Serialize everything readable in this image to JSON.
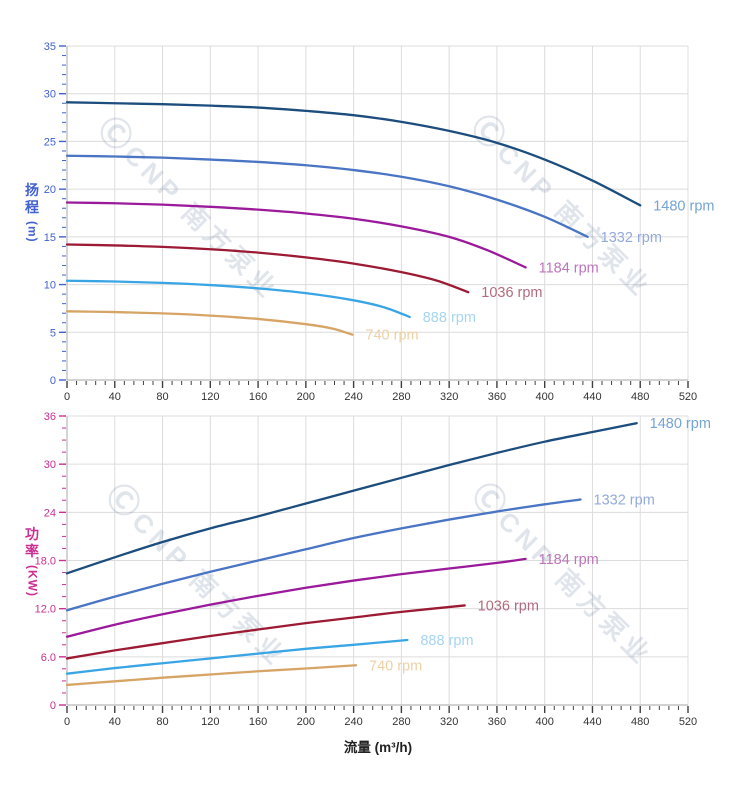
{
  "watermark": {
    "symbol": "Ⓒ",
    "text": "CNP 南方泵业"
  },
  "chart_data": [
    {
      "type": "line",
      "name": "pump-head-curves",
      "x_axis": {
        "title": "",
        "min": 0,
        "max": 520,
        "major": 40,
        "minor": 8,
        "color": "#333333",
        "labels": [
          "0",
          "40",
          "80",
          "120",
          "160",
          "200",
          "240",
          "280",
          "320",
          "360",
          "400",
          "440",
          "480",
          "520"
        ]
      },
      "y_axis": {
        "title": "扬程",
        "unit": "(m)",
        "min": 0,
        "max": 35,
        "major": 5,
        "minor": 1,
        "color": "#4161d2",
        "labels": [
          "0",
          "5",
          "10",
          "15",
          "20",
          "25",
          "30",
          "35"
        ]
      },
      "legend_position": "curve-end-labels",
      "grid": true,
      "series": [
        {
          "name": "1480 rpm",
          "color": "#1c4d7d",
          "label_color": "#74a3d4",
          "points": [
            [
              0,
              29.1
            ],
            [
              40,
              29.0
            ],
            [
              80,
              28.9
            ],
            [
              120,
              28.75
            ],
            [
              160,
              28.55
            ],
            [
              200,
              28.2
            ],
            [
              240,
              27.75
            ],
            [
              280,
              27.05
            ],
            [
              320,
              26.1
            ],
            [
              360,
              24.85
            ],
            [
              400,
              23.1
            ],
            [
              440,
              20.9
            ],
            [
              480,
              18.3
            ]
          ]
        },
        {
          "name": "1332 rpm",
          "color": "#4a74c4",
          "label_color": "#94aadd",
          "points": [
            [
              0,
              23.5
            ],
            [
              40,
              23.42
            ],
            [
              80,
              23.3
            ],
            [
              120,
              23.1
            ],
            [
              160,
              22.85
            ],
            [
              200,
              22.5
            ],
            [
              240,
              22.0
            ],
            [
              280,
              21.3
            ],
            [
              320,
              20.3
            ],
            [
              360,
              18.9
            ],
            [
              400,
              17.1
            ],
            [
              436,
              15.0
            ]
          ]
        },
        {
          "name": "1184 rpm",
          "color": "#9b1a9b",
          "label_color": "#bd75bd",
          "points": [
            [
              0,
              18.6
            ],
            [
              40,
              18.52
            ],
            [
              80,
              18.38
            ],
            [
              120,
              18.15
            ],
            [
              160,
              17.85
            ],
            [
              200,
              17.45
            ],
            [
              240,
              16.9
            ],
            [
              280,
              16.1
            ],
            [
              320,
              15.0
            ],
            [
              352,
              13.6
            ],
            [
              384,
              11.8
            ]
          ]
        },
        {
          "name": "1036 rpm",
          "color": "#9c1a33",
          "label_color": "#b16b80",
          "points": [
            [
              0,
              14.2
            ],
            [
              40,
              14.1
            ],
            [
              80,
              13.95
            ],
            [
              120,
              13.7
            ],
            [
              160,
              13.35
            ],
            [
              200,
              12.85
            ],
            [
              240,
              12.2
            ],
            [
              280,
              11.3
            ],
            [
              310,
              10.4
            ],
            [
              336,
              9.2
            ]
          ]
        },
        {
          "name": "888 rpm",
          "color": "#3aa5e5",
          "label_color": "#a6d5f2",
          "points": [
            [
              0,
              10.4
            ],
            [
              40,
              10.32
            ],
            [
              80,
              10.18
            ],
            [
              120,
              9.95
            ],
            [
              160,
              9.6
            ],
            [
              200,
              9.1
            ],
            [
              240,
              8.35
            ],
            [
              266,
              7.6
            ],
            [
              287,
              6.6
            ]
          ]
        },
        {
          "name": "740 rpm",
          "color": "#d6a465",
          "label_color": "#edd0a4",
          "points": [
            [
              0,
              7.2
            ],
            [
              40,
              7.12
            ],
            [
              80,
              6.98
            ],
            [
              120,
              6.75
            ],
            [
              160,
              6.4
            ],
            [
              200,
              5.85
            ],
            [
              222,
              5.4
            ],
            [
              239,
              4.75
            ]
          ]
        }
      ]
    },
    {
      "type": "line",
      "name": "pump-power-curves",
      "x_axis": {
        "title": "流量 (m³/h)",
        "min": 0,
        "max": 520,
        "major": 40,
        "minor": 8,
        "color": "#333333",
        "labels": [
          "0",
          "40",
          "80",
          "120",
          "160",
          "200",
          "240",
          "280",
          "320",
          "360",
          "400",
          "440",
          "480",
          "520"
        ]
      },
      "y_axis": {
        "title": "功率",
        "unit": "(KW)",
        "min": 0,
        "max": 36,
        "major": 6,
        "minor": 1.5,
        "color": "#cb2f92",
        "labels": [
          "0",
          "6.0",
          "12.0",
          "18.0",
          "24",
          "30",
          "36"
        ]
      },
      "legend_position": "curve-end-labels",
      "grid": true,
      "series": [
        {
          "name": "1480 rpm",
          "color": "#1c4d7d",
          "label_color": "#74a3d4",
          "points": [
            [
              0,
              16.4
            ],
            [
              40,
              18.4
            ],
            [
              80,
              20.3
            ],
            [
              120,
              22.0
            ],
            [
              160,
              23.5
            ],
            [
              200,
              25.1
            ],
            [
              240,
              26.7
            ],
            [
              280,
              28.3
            ],
            [
              320,
              29.9
            ],
            [
              360,
              31.4
            ],
            [
              400,
              32.8
            ],
            [
              440,
              34.0
            ],
            [
              477,
              35.1
            ]
          ]
        },
        {
          "name": "1332 rpm",
          "color": "#4a74c4",
          "label_color": "#94aadd",
          "points": [
            [
              0,
              11.8
            ],
            [
              40,
              13.5
            ],
            [
              80,
              15.1
            ],
            [
              120,
              16.6
            ],
            [
              160,
              18.0
            ],
            [
              200,
              19.4
            ],
            [
              240,
              20.8
            ],
            [
              280,
              22.0
            ],
            [
              320,
              23.1
            ],
            [
              360,
              24.1
            ],
            [
              400,
              25.0
            ],
            [
              430,
              25.6
            ]
          ]
        },
        {
          "name": "1184 rpm",
          "color": "#9b1a9b",
          "label_color": "#bd75bd",
          "points": [
            [
              0,
              8.5
            ],
            [
              40,
              10.0
            ],
            [
              80,
              11.3
            ],
            [
              120,
              12.5
            ],
            [
              160,
              13.6
            ],
            [
              200,
              14.6
            ],
            [
              240,
              15.5
            ],
            [
              280,
              16.3
            ],
            [
              320,
              17.0
            ],
            [
              360,
              17.7
            ],
            [
              384,
              18.2
            ]
          ]
        },
        {
          "name": "1036 rpm",
          "color": "#9c1a33",
          "label_color": "#b16b80",
          "points": [
            [
              0,
              5.8
            ],
            [
              40,
              6.8
            ],
            [
              80,
              7.7
            ],
            [
              120,
              8.6
            ],
            [
              160,
              9.4
            ],
            [
              200,
              10.2
            ],
            [
              240,
              10.9
            ],
            [
              280,
              11.6
            ],
            [
              333,
              12.4
            ]
          ]
        },
        {
          "name": "888 rpm",
          "color": "#3aa5e5",
          "label_color": "#a6d5f2",
          "points": [
            [
              0,
              3.9
            ],
            [
              40,
              4.6
            ],
            [
              80,
              5.2
            ],
            [
              120,
              5.8
            ],
            [
              160,
              6.4
            ],
            [
              200,
              7.0
            ],
            [
              240,
              7.5
            ],
            [
              285,
              8.1
            ]
          ]
        },
        {
          "name": "740 rpm",
          "color": "#d6a465",
          "label_color": "#edd0a4",
          "points": [
            [
              0,
              2.5
            ],
            [
              40,
              2.95
            ],
            [
              80,
              3.4
            ],
            [
              120,
              3.8
            ],
            [
              160,
              4.2
            ],
            [
              200,
              4.55
            ],
            [
              242,
              4.95
            ]
          ]
        }
      ]
    }
  ]
}
